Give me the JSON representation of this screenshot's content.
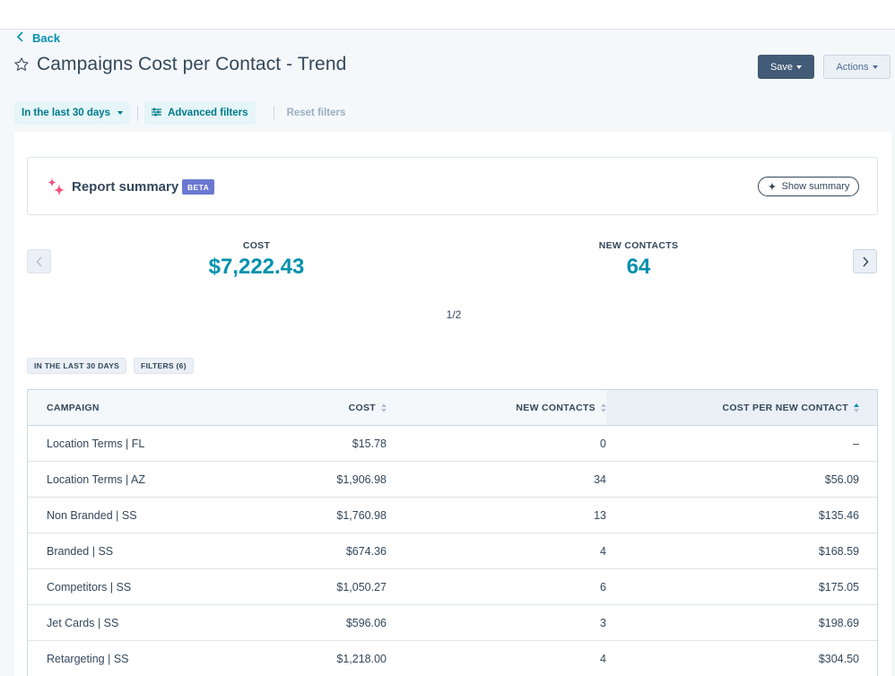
{
  "nav": {
    "back_label": "Back"
  },
  "header": {
    "title": "Campaigns Cost per Contact - Trend",
    "save_label": "Save",
    "actions_label": "Actions"
  },
  "filters": {
    "date_range": "In the last 30 days",
    "advanced": "Advanced filters",
    "reset": "Reset filters"
  },
  "summary": {
    "title": "Report summary",
    "badge": "BETA",
    "show_label": "Show summary"
  },
  "kpis": [
    {
      "label": "COST",
      "value": "$7,222.43"
    },
    {
      "label": "NEW CONTACTS",
      "value": "64"
    }
  ],
  "pager": "1/2",
  "tags": {
    "range": "IN THE LAST 30 DAYS",
    "filters": "FILTERS (6)"
  },
  "table": {
    "columns": [
      "CAMPAIGN",
      "COST",
      "NEW CONTACTS",
      "COST PER NEW CONTACT"
    ],
    "rows": [
      {
        "campaign": "Location Terms | FL",
        "cost": "$15.78",
        "contacts": "0",
        "cpc": "–"
      },
      {
        "campaign": "Location Terms | AZ",
        "cost": "$1,906.98",
        "contacts": "34",
        "cpc": "$56.09"
      },
      {
        "campaign": "Non Branded | SS",
        "cost": "$1,760.98",
        "contacts": "13",
        "cpc": "$135.46"
      },
      {
        "campaign": "Branded | SS",
        "cost": "$674.36",
        "contacts": "4",
        "cpc": "$168.59"
      },
      {
        "campaign": "Competitors | SS",
        "cost": "$1,050.27",
        "contacts": "6",
        "cpc": "$175.05"
      },
      {
        "campaign": "Jet Cards | SS",
        "cost": "$596.06",
        "contacts": "3",
        "cpc": "$198.69"
      },
      {
        "campaign": "Retargeting | SS",
        "cost": "$1,218.00",
        "contacts": "4",
        "cpc": "$304.50"
      }
    ]
  },
  "colors": {
    "accent": "#0091ae",
    "primary_button": "#425b76",
    "beta": "#6a78d1",
    "text": "#33475b"
  }
}
